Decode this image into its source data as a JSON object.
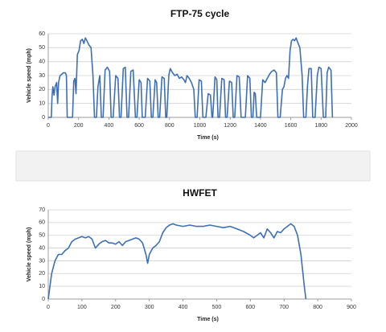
{
  "chart_data": [
    {
      "type": "line",
      "title": "FTP-75 cycle",
      "xlabel": "Time (s)",
      "ylabel": "Vehicle speed (mph)",
      "x": [
        0,
        20,
        25,
        30,
        38,
        45,
        55,
        62,
        68,
        78,
        90,
        100,
        112,
        120,
        125,
        160,
        168,
        176,
        183,
        192,
        203,
        213,
        225,
        235,
        245,
        255,
        268,
        282,
        295,
        305,
        318,
        328,
        340,
        350,
        362,
        375,
        390,
        405,
        415,
        428,
        445,
        460,
        470,
        480,
        495,
        508,
        520,
        530,
        545,
        560,
        575,
        585,
        600,
        612,
        620,
        640,
        655,
        670,
        680,
        690,
        705,
        715,
        725,
        735,
        750,
        765,
        775,
        782,
        795,
        805,
        820,
        835,
        850,
        865,
        880,
        895,
        905,
        915,
        930,
        945,
        960,
        970,
        982,
        995,
        1010,
        1020,
        1040,
        1055,
        1070,
        1080,
        1085,
        1100,
        1112,
        1120,
        1130,
        1145,
        1160,
        1170,
        1180,
        1195,
        1210,
        1220,
        1230,
        1245,
        1260,
        1272,
        1300,
        1315,
        1330,
        1340,
        1350,
        1358,
        1366,
        1375,
        1400,
        1415,
        1430,
        1445,
        1460,
        1475,
        1490,
        1505,
        1515,
        1530,
        1545,
        1555,
        1565,
        1575,
        1585,
        1595,
        1605,
        1615,
        1625,
        1635,
        1645,
        1660,
        1675,
        1685,
        1700,
        1710,
        1720,
        1735,
        1745,
        1760,
        1775,
        1785,
        1800,
        1815,
        1830,
        1840,
        1850,
        1865,
        1875
      ],
      "series": [
        {
          "color": "#3d6fb6",
          "values": [
            0,
            0,
            15,
            22,
            16,
            22,
            25,
            10,
            25,
            30,
            31,
            32,
            32,
            30,
            0,
            0,
            26,
            28,
            17,
            45,
            48,
            55,
            56,
            53,
            57,
            55,
            52,
            50,
            30,
            0,
            0,
            22,
            30,
            0,
            0,
            34,
            36,
            33,
            0,
            0,
            30,
            28,
            0,
            0,
            35,
            36,
            0,
            0,
            33,
            34,
            0,
            0,
            27,
            25,
            0,
            0,
            28,
            26,
            0,
            0,
            27,
            25,
            0,
            0,
            29,
            28,
            0,
            0,
            30,
            35,
            32,
            30,
            31,
            28,
            29,
            27,
            25,
            30,
            28,
            25,
            20,
            0,
            0,
            27,
            26,
            0,
            0,
            17,
            16,
            0,
            0,
            29,
            27,
            0,
            0,
            28,
            27,
            0,
            0,
            26,
            25,
            0,
            0,
            30,
            29,
            0,
            0,
            30,
            28,
            0,
            0,
            18,
            17,
            0,
            0,
            27,
            25,
            28,
            31,
            33,
            34,
            32,
            0,
            0,
            20,
            22,
            28,
            30,
            28,
            48,
            55,
            56,
            55,
            57,
            54,
            50,
            30,
            0,
            0,
            22,
            35,
            35,
            0,
            0,
            30,
            36,
            35,
            0,
            0,
            32,
            36,
            34,
            0
          ]
        }
      ],
      "xlim": [
        0,
        2000
      ],
      "xticks": [
        0,
        200,
        400,
        600,
        800,
        1000,
        1200,
        1400,
        1600,
        1800,
        2000
      ],
      "ylim": [
        0,
        60
      ],
      "yticks": [
        0,
        10,
        20,
        30,
        40,
        50,
        60
      ],
      "grid": true
    },
    {
      "type": "line",
      "title": "HWFET",
      "xlabel": "Time (s)",
      "ylabel": "Vehicle speed (mph)",
      "x": [
        0,
        10,
        20,
        30,
        40,
        50,
        60,
        70,
        80,
        90,
        100,
        110,
        120,
        130,
        140,
        150,
        160,
        170,
        180,
        190,
        200,
        210,
        220,
        230,
        240,
        260,
        270,
        280,
        290,
        295,
        300,
        310,
        320,
        330,
        340,
        350,
        360,
        370,
        380,
        400,
        420,
        440,
        460,
        480,
        500,
        520,
        540,
        560,
        580,
        600,
        610,
        620,
        630,
        640,
        650,
        660,
        670,
        680,
        690,
        700,
        710,
        720,
        730,
        740,
        750,
        760,
        765
      ],
      "series": [
        {
          "color": "#3d6fb6",
          "values": [
            0,
            20,
            30,
            35,
            35,
            38,
            40,
            45,
            47,
            48,
            49,
            48,
            49,
            47,
            40,
            43,
            45,
            46,
            44,
            44,
            43,
            45,
            42,
            45,
            46,
            48,
            47,
            44,
            35,
            28,
            35,
            40,
            42,
            45,
            52,
            56,
            58,
            59,
            58,
            57,
            58,
            57,
            57,
            58,
            57,
            56,
            57,
            55,
            53,
            50,
            48,
            50,
            52,
            48,
            55,
            52,
            48,
            53,
            52,
            55,
            57,
            59,
            57,
            50,
            35,
            10,
            0
          ]
        }
      ],
      "xlim": [
        0,
        900
      ],
      "xticks": [
        0,
        100,
        200,
        300,
        400,
        500,
        600,
        700,
        800,
        900
      ],
      "ylim": [
        0,
        70
      ],
      "yticks": [
        0,
        10,
        20,
        30,
        40,
        50,
        60,
        70
      ],
      "grid": true
    }
  ]
}
